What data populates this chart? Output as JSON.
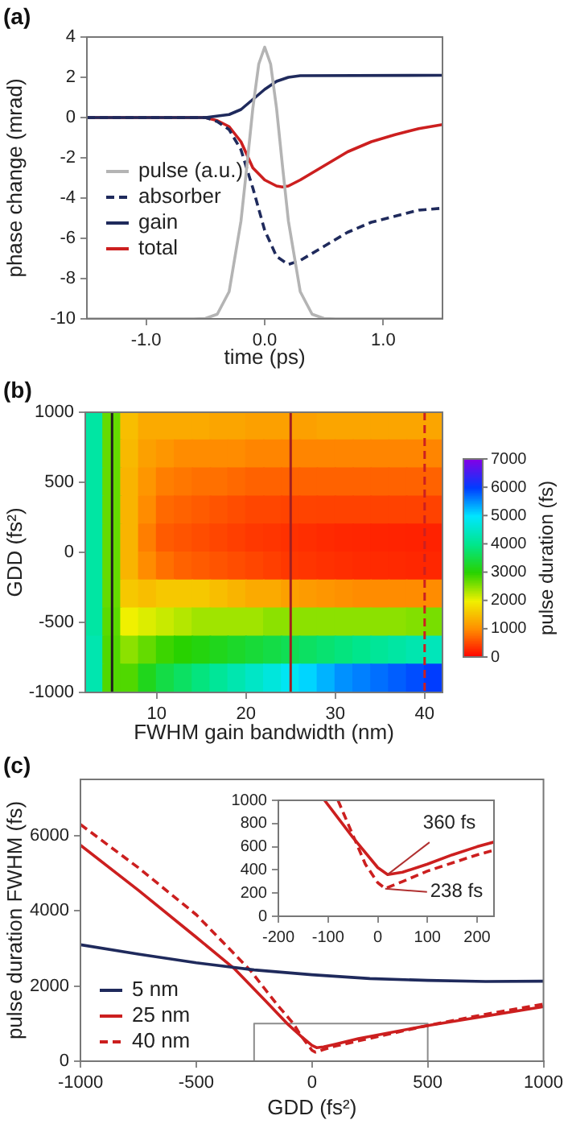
{
  "chart_data": [
    {
      "type": "line",
      "title": "(a)",
      "xlabel": "time (ps)",
      "ylabel": "phase change (mrad)",
      "xlim": [
        -1.5,
        1.5
      ],
      "xticks": [
        {
          "value": -1,
          "label": "-1.0"
        },
        {
          "value": 0,
          "label": "0.0"
        },
        {
          "value": 1,
          "label": "1.0"
        }
      ],
      "ylim": [
        -10,
        4
      ],
      "yticks": [
        -10,
        -8,
        -6,
        -4,
        -2,
        0,
        2,
        4
      ],
      "grid": false,
      "legend": "left",
      "marker": "none",
      "series": [
        {
          "name": "pulse (a.u.)",
          "color": "#b4b4b4",
          "x": [
            -1.5,
            -0.6,
            -0.5,
            -0.4,
            -0.3,
            -0.2,
            -0.15,
            -0.1,
            -0.05,
            0,
            0.05,
            0.1,
            0.15,
            0.2,
            0.3,
            0.4,
            0.5,
            0.6,
            1.5
          ],
          "values": [
            -10,
            -10,
            -9.98,
            -9.77,
            -8.65,
            -5.14,
            -2.4,
            0.46,
            2.66,
            3.5,
            2.66,
            0.46,
            -2.4,
            -5.14,
            -8.65,
            -9.77,
            -9.98,
            -10,
            -10
          ]
        },
        {
          "name": "absorber",
          "color": "#1f2a5c",
          "line_style": "dashed",
          "x": [
            -1.5,
            -0.5,
            -0.4,
            -0.3,
            -0.2,
            -0.1,
            0,
            0.1,
            0.2,
            0.3,
            0.5,
            0.7,
            0.9,
            1.1,
            1.3,
            1.5
          ],
          "values": [
            0,
            0,
            -0.2,
            -0.6,
            -1.6,
            -3.5,
            -5.6,
            -6.9,
            -7.3,
            -7.1,
            -6.4,
            -5.7,
            -5.2,
            -4.9,
            -4.6,
            -4.5
          ]
        },
        {
          "name": "gain",
          "color": "#1f2a5c",
          "x": [
            -1.5,
            -0.5,
            -0.3,
            -0.2,
            -0.1,
            0,
            0.1,
            0.2,
            0.3,
            1.5
          ],
          "values": [
            0,
            0,
            0.15,
            0.4,
            0.9,
            1.4,
            1.8,
            2,
            2.08,
            2.1
          ]
        },
        {
          "name": "total",
          "color": "#cc1f1f",
          "x": [
            -1.5,
            -0.5,
            -0.4,
            -0.3,
            -0.2,
            -0.1,
            0,
            0.1,
            0.15,
            0.2,
            0.3,
            0.5,
            0.7,
            0.9,
            1.1,
            1.3,
            1.5
          ],
          "values": [
            0,
            0,
            -0.15,
            -0.45,
            -1.2,
            -2.5,
            -3.1,
            -3.4,
            -3.45,
            -3.4,
            -3.1,
            -2.4,
            -1.7,
            -1.2,
            -0.85,
            -0.55,
            -0.35
          ]
        }
      ]
    },
    {
      "type": "heatmap",
      "title": "(b)",
      "xlabel": "FWHM gain bandwidth (nm)",
      "ylabel": "GDD (fs²)",
      "clabel": "pulse duration (fs)",
      "xlim": [
        2,
        42
      ],
      "xticks": [
        10,
        20,
        30,
        40
      ],
      "ylim": [
        -1000,
        1000
      ],
      "yticks": [
        -1000,
        -500,
        0,
        500,
        1000
      ],
      "clim": [
        0,
        7000
      ],
      "cticks": [
        0,
        1000,
        2000,
        3000,
        4000,
        5000,
        6000,
        7000
      ],
      "x": [
        3,
        5,
        7,
        9,
        11,
        13,
        15,
        17,
        19,
        21,
        23,
        25,
        27,
        29,
        31,
        33,
        35,
        37,
        39,
        41
      ],
      "y": [
        900,
        700,
        500,
        300,
        100,
        -100,
        -300,
        -500,
        -700,
        -900
      ],
      "cells": [
        [
          4200,
          2700,
          1500,
          1300,
          1300,
          1300,
          1300,
          1250,
          1250,
          1200,
          1200,
          1200,
          1200,
          1250,
          1250,
          1250,
          1250,
          1250,
          1250,
          1250
        ],
        [
          4200,
          2700,
          1450,
          1200,
          1100,
          1000,
          1000,
          1000,
          1000,
          950,
          950,
          950,
          950,
          950,
          950,
          950,
          950,
          950,
          950,
          950
        ],
        [
          4200,
          2700,
          1400,
          1100,
          900,
          850,
          800,
          800,
          750,
          700,
          700,
          700,
          700,
          700,
          700,
          700,
          700,
          700,
          700,
          700
        ],
        [
          4200,
          2700,
          1400,
          1000,
          750,
          700,
          650,
          600,
          550,
          500,
          500,
          480,
          480,
          470,
          470,
          470,
          470,
          470,
          470,
          470
        ],
        [
          4200,
          2700,
          1400,
          900,
          650,
          600,
          550,
          500,
          450,
          400,
          380,
          350,
          330,
          300,
          280,
          270,
          260,
          250,
          240,
          240
        ],
        [
          4200,
          2700,
          1400,
          1000,
          800,
          700,
          650,
          600,
          550,
          500,
          450,
          400,
          380,
          350,
          330,
          310,
          300,
          290,
          280,
          280
        ],
        [
          4200,
          2700,
          1600,
          1500,
          1600,
          1600,
          1600,
          1500,
          1400,
          1300,
          1300,
          1200,
          1150,
          1100,
          1050,
          1000,
          1000,
          1000,
          1000,
          1000
        ],
        [
          4200,
          2750,
          2000,
          2100,
          2200,
          2300,
          2400,
          2400,
          2400,
          2400,
          2500,
          2500,
          2500,
          2500,
          2500,
          2500,
          2500,
          2500,
          2550,
          2600
        ],
        [
          4300,
          2800,
          2500,
          2700,
          2900,
          3000,
          3100,
          3200,
          3300,
          3400,
          3500,
          3600,
          3700,
          3800,
          3900,
          4000,
          4100,
          4200,
          4300,
          4400
        ],
        [
          4300,
          2800,
          2800,
          3200,
          3500,
          3700,
          3900,
          4100,
          4300,
          4500,
          4700,
          4900,
          5100,
          5300,
          5500,
          5600,
          5700,
          5800,
          5900,
          6000
        ]
      ],
      "ref_lines": [
        {
          "axis": "x",
          "value": 5,
          "color": "#202020"
        },
        {
          "axis": "x",
          "value": 25,
          "color": "#a02020"
        },
        {
          "axis": "x",
          "value": 40,
          "color": "#cc2020",
          "line_style": "dashed"
        }
      ]
    },
    {
      "type": "line",
      "title": "(c)",
      "xlabel": "GDD (fs²)",
      "ylabel": "pulse duration FWHM (fs)",
      "xlim": [
        -1000,
        1000
      ],
      "xticks": [
        -1000,
        -500,
        0,
        500,
        1000
      ],
      "ylim": [
        0,
        7500
      ],
      "yticks": [
        0,
        2000,
        4000,
        6000
      ],
      "grid": false,
      "legend": "bottom left",
      "marker": "none",
      "series": [
        {
          "name": "5 nm",
          "color": "#1f2a5c",
          "x": [
            -1000,
            -750,
            -500,
            -250,
            0,
            250,
            500,
            750,
            1000
          ],
          "values": [
            3100,
            2850,
            2620,
            2430,
            2300,
            2200,
            2150,
            2120,
            2130
          ]
        },
        {
          "name": "25 nm",
          "color": "#cc1f1f",
          "x": [
            -1000,
            -750,
            -500,
            -333,
            -200,
            -107,
            -50,
            0,
            20,
            50,
            100,
            200,
            500,
            750,
            1000
          ],
          "values": [
            5750,
            4550,
            3300,
            2450,
            1600,
            1000,
            680,
            420,
            360,
            380,
            450,
            600,
            950,
            1200,
            1450
          ]
        },
        {
          "name": "40 nm",
          "color": "#cc1f1f",
          "line_style": "dashed",
          "x": [
            -1000,
            -750,
            -500,
            -264,
            -150,
            -80,
            -50,
            0,
            15,
            50,
            100,
            200,
            500,
            750,
            1000
          ],
          "values": [
            6300,
            5150,
            3900,
            2400,
            1500,
            1000,
            700,
            290,
            240,
            310,
            400,
            540,
            950,
            1250,
            1520
          ]
        },
        {
          "color": "#8c8c8c",
          "x": [
            -250,
            -250,
            500,
            500
          ],
          "values": [
            0,
            1000,
            1000,
            0
          ]
        }
      ]
    },
    {
      "type": "line",
      "xlim": [
        -200,
        234
      ],
      "xticks": [
        -200,
        -100,
        0,
        100,
        200
      ],
      "ylim": [
        0,
        1000
      ],
      "yticks": [
        0,
        200,
        400,
        600,
        800,
        1000
      ],
      "grid": false,
      "marker": "none",
      "annotations": [
        {
          "text": "360 fs",
          "x": 20,
          "y": 360
        },
        {
          "text": "238 fs",
          "x": 15,
          "y": 238
        }
      ],
      "series": [
        {
          "color": "#cc1f1f",
          "x": [
            -107,
            -50,
            0,
            20,
            50,
            100,
            150,
            200,
            234
          ],
          "values": [
            1000,
            680,
            420,
            360,
            380,
            450,
            530,
            600,
            640
          ]
        },
        {
          "color": "#cc1f1f",
          "line_style": "dashed",
          "x": [
            -80,
            -50,
            -25,
            0,
            15,
            50,
            100,
            150,
            200,
            234
          ],
          "values": [
            1000,
            700,
            450,
            290,
            240,
            300,
            390,
            460,
            530,
            570
          ]
        }
      ]
    }
  ]
}
